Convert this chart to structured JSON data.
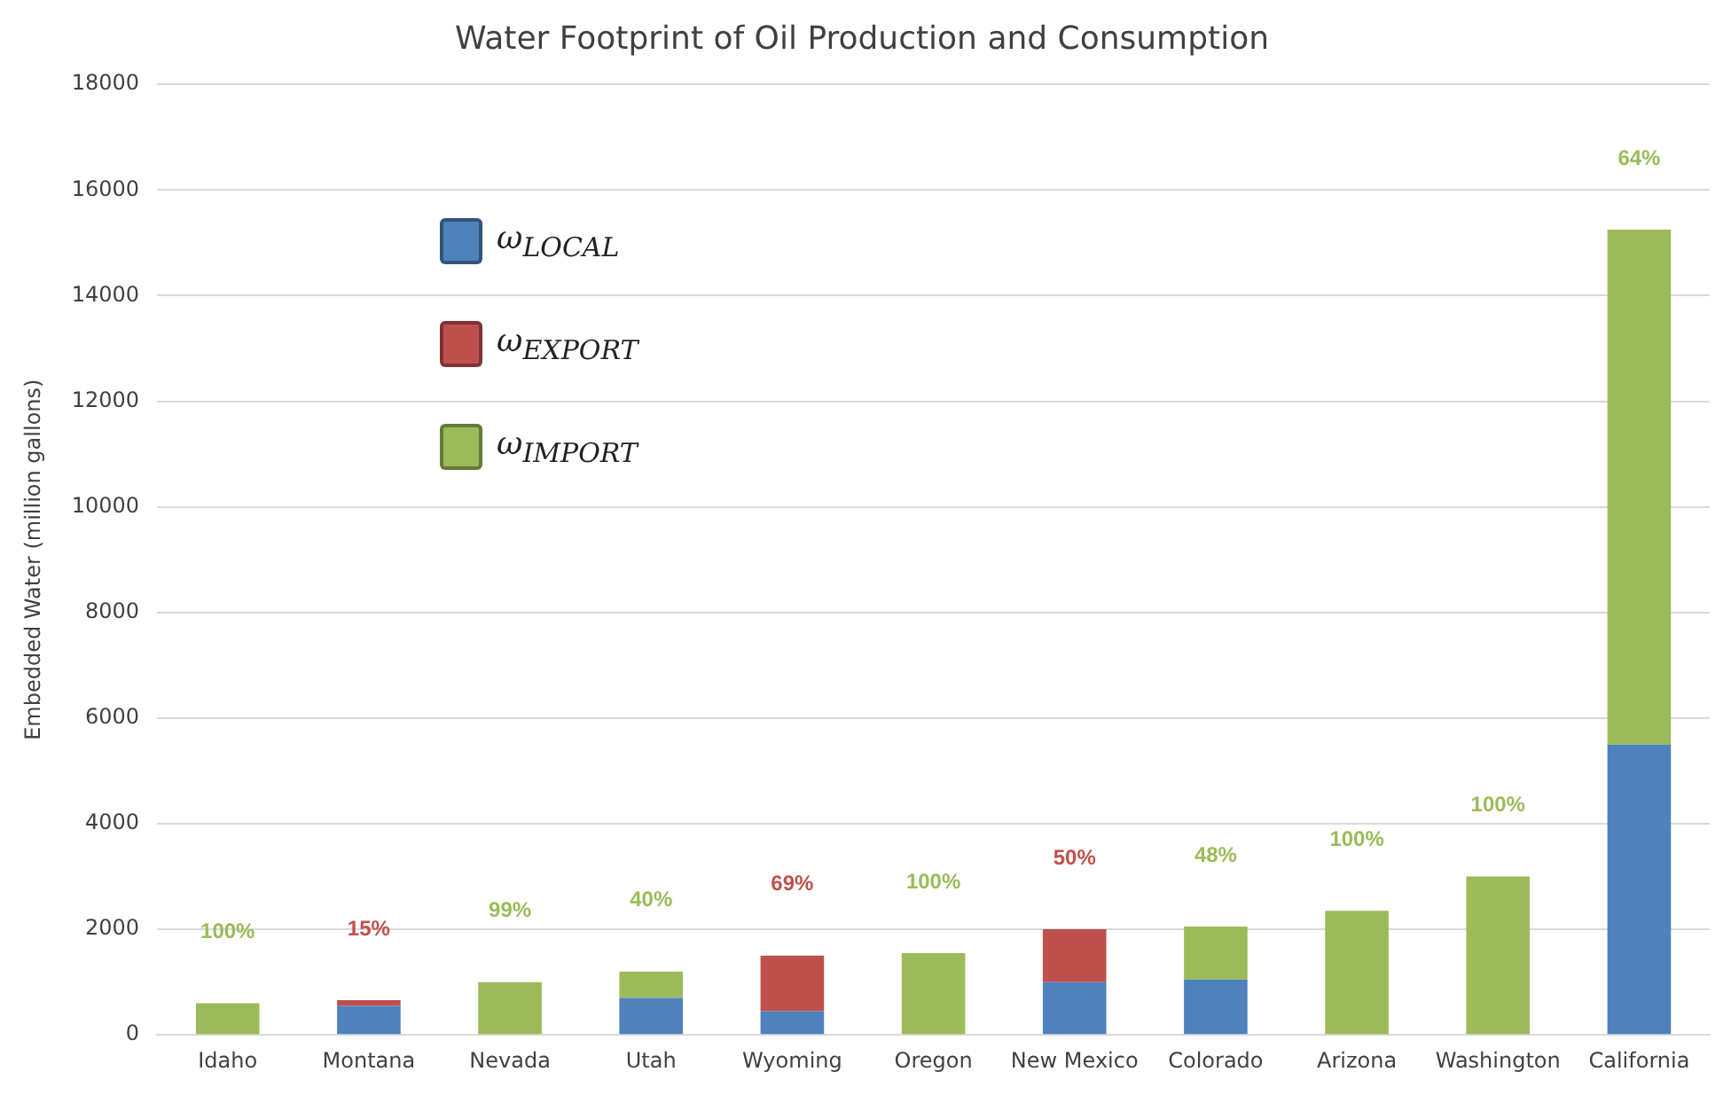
{
  "chart_data": {
    "type": "bar",
    "title": "Water Footprint of Oil Production and Consumption",
    "ylabel": "Embedded Water (million gallons)",
    "categories": [
      "Idaho",
      "Montana",
      "Nevada",
      "Utah",
      "Wyoming",
      "Oregon",
      "New Mexico",
      "Colorado",
      "Arizona",
      "Washington",
      "California"
    ],
    "stacked": true,
    "ylim": [
      0,
      18000
    ],
    "yticks": [
      0,
      2000,
      4000,
      6000,
      8000,
      10000,
      12000,
      14000,
      16000,
      18000
    ],
    "grid": "y",
    "legend": "top left",
    "series": [
      {
        "name": "ω$_{LOCAL}$",
        "color": "#4f81bd",
        "values": [
          0,
          550,
          0,
          700,
          450,
          0,
          1000,
          1050,
          0,
          0,
          5500
        ]
      },
      {
        "name": "ω$_{EXPORT}$",
        "color": "#c0504d",
        "values": [
          0,
          110,
          0,
          0,
          1050,
          0,
          1000,
          0,
          0,
          0,
          0
        ]
      },
      {
        "name": "ω$_{IMPORT}$",
        "color": "#9bbb59",
        "values": [
          600,
          0,
          1000,
          500,
          0,
          1550,
          0,
          1000,
          2350,
          3000,
          9750
        ]
      }
    ],
    "annotations": [
      "100%",
      "15%",
      "99%",
      "40%",
      "69%",
      "100%",
      "50%",
      "48%",
      "100%",
      "100%",
      "64%"
    ]
  }
}
